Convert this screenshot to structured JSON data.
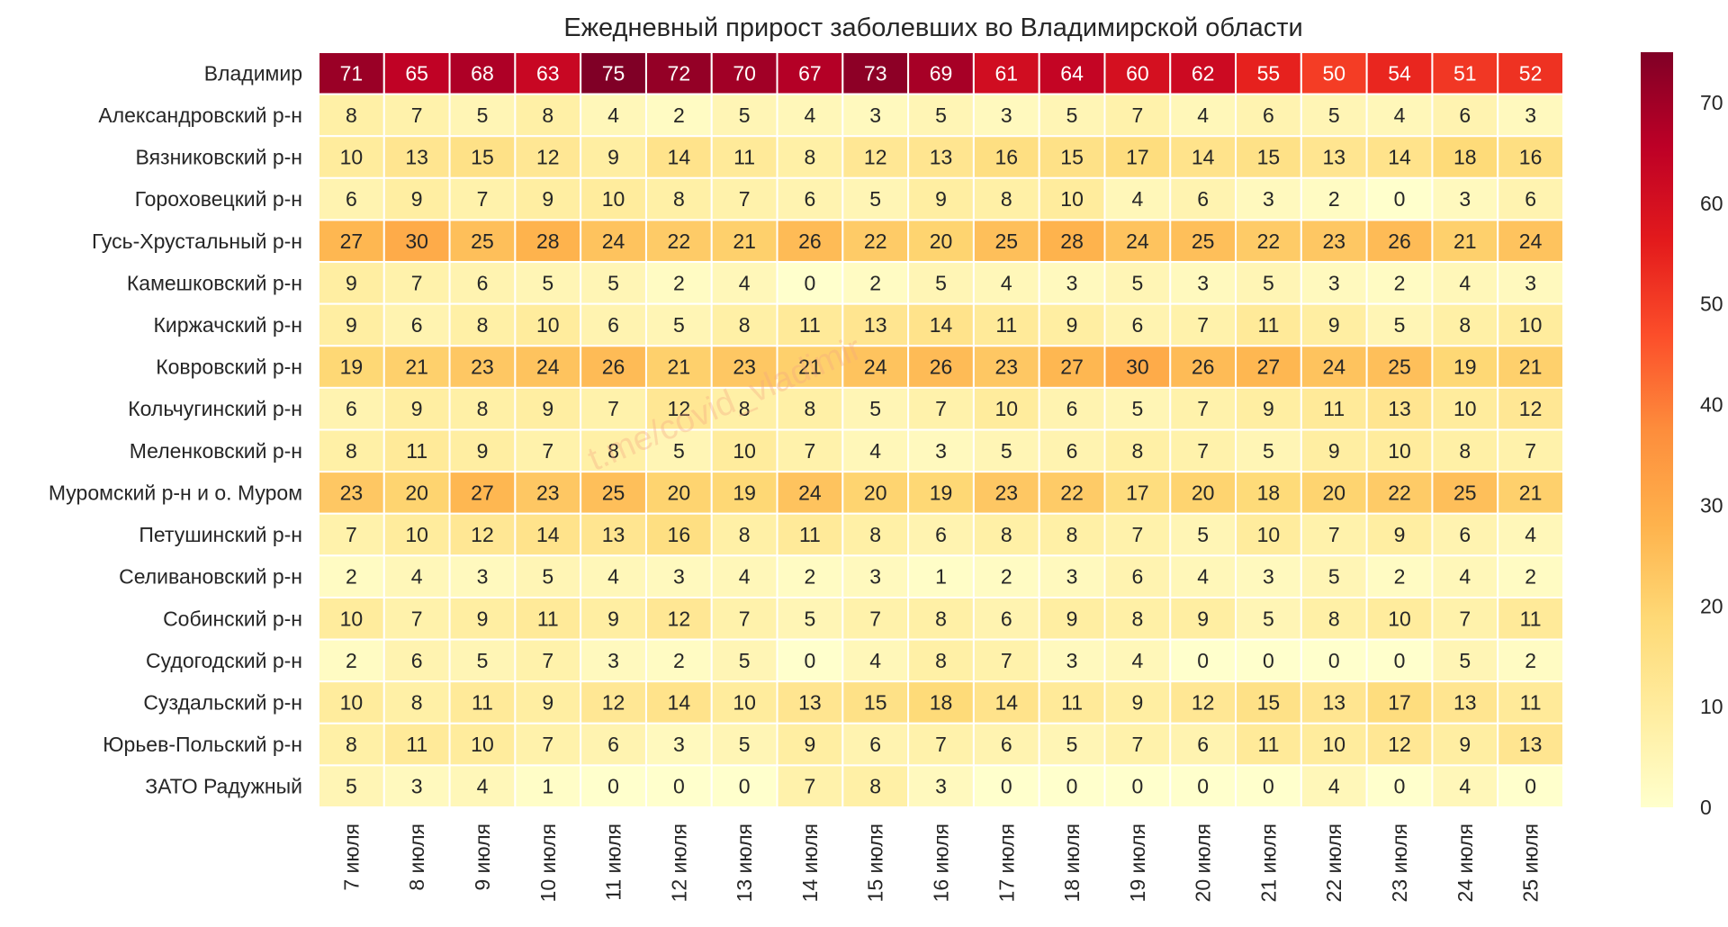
{
  "chart_data": {
    "type": "heatmap",
    "title": "Ежедневный прирост заболевших во Владимирской области",
    "watermark": "t.me/covid_vladimir",
    "rows": [
      "Владимир",
      "Александровский р-н",
      "Вязниковский р-н",
      "Гороховецкий р-н",
      "Гусь-Хрустальный р-н",
      "Камешковский р-н",
      "Киржачский р-н",
      "Ковровский р-н",
      "Кольчугинский р-н",
      "Меленковский р-н",
      "Муромский р-н и о. Муром",
      "Петушинский р-н",
      "Селивановский р-н",
      "Собинский р-н",
      "Судогодский р-н",
      "Суздальский р-н",
      "Юрьев-Польский р-н",
      "ЗАТО Радужный"
    ],
    "columns": [
      "7 июля",
      "8 июля",
      "9 июля",
      "10 июля",
      "11 июля",
      "12 июля",
      "13 июля",
      "14 июля",
      "15 июля",
      "16 июля",
      "17 июля",
      "18 июля",
      "19 июля",
      "20 июля",
      "21 июля",
      "22 июля",
      "23 июля",
      "24 июля",
      "25 июля"
    ],
    "values": [
      [
        71,
        65,
        68,
        63,
        75,
        72,
        70,
        67,
        73,
        69,
        61,
        64,
        60,
        62,
        55,
        50,
        54,
        51,
        52
      ],
      [
        8,
        7,
        5,
        8,
        4,
        2,
        5,
        4,
        3,
        5,
        3,
        5,
        7,
        4,
        6,
        5,
        4,
        6,
        3
      ],
      [
        10,
        13,
        15,
        12,
        9,
        14,
        11,
        8,
        12,
        13,
        16,
        15,
        17,
        14,
        15,
        13,
        14,
        18,
        16
      ],
      [
        6,
        9,
        7,
        9,
        10,
        8,
        7,
        6,
        5,
        9,
        8,
        10,
        4,
        6,
        3,
        2,
        0,
        3,
        6
      ],
      [
        27,
        30,
        25,
        28,
        24,
        22,
        21,
        26,
        22,
        20,
        25,
        28,
        24,
        25,
        22,
        23,
        26,
        21,
        24
      ],
      [
        9,
        7,
        6,
        5,
        5,
        2,
        4,
        0,
        2,
        5,
        4,
        3,
        5,
        3,
        5,
        3,
        2,
        4,
        3
      ],
      [
        9,
        6,
        8,
        10,
        6,
        5,
        8,
        11,
        13,
        14,
        11,
        9,
        6,
        7,
        11,
        9,
        5,
        8,
        10
      ],
      [
        19,
        21,
        23,
        24,
        26,
        21,
        23,
        21,
        24,
        26,
        23,
        27,
        30,
        26,
        27,
        24,
        25,
        19,
        21
      ],
      [
        6,
        9,
        8,
        9,
        7,
        12,
        8,
        8,
        5,
        7,
        10,
        6,
        5,
        7,
        9,
        11,
        13,
        10,
        12
      ],
      [
        8,
        11,
        9,
        7,
        8,
        5,
        10,
        7,
        4,
        3,
        5,
        6,
        8,
        7,
        5,
        9,
        10,
        8,
        7
      ],
      [
        23,
        20,
        27,
        23,
        25,
        20,
        19,
        24,
        20,
        19,
        23,
        22,
        17,
        20,
        18,
        20,
        22,
        25,
        21
      ],
      [
        7,
        10,
        12,
        14,
        13,
        16,
        8,
        11,
        8,
        6,
        8,
        8,
        7,
        5,
        10,
        7,
        9,
        6,
        4
      ],
      [
        2,
        4,
        3,
        5,
        4,
        3,
        4,
        2,
        3,
        1,
        2,
        3,
        6,
        4,
        3,
        5,
        2,
        4,
        2
      ],
      [
        10,
        7,
        9,
        11,
        9,
        12,
        7,
        5,
        7,
        8,
        6,
        9,
        8,
        9,
        5,
        8,
        10,
        7,
        11
      ],
      [
        2,
        6,
        5,
        7,
        3,
        2,
        5,
        0,
        4,
        8,
        7,
        3,
        4,
        0,
        0,
        0,
        0,
        5,
        2
      ],
      [
        10,
        8,
        11,
        9,
        12,
        14,
        10,
        13,
        15,
        18,
        14,
        11,
        9,
        12,
        15,
        13,
        17,
        13,
        11
      ],
      [
        8,
        11,
        10,
        7,
        6,
        3,
        5,
        9,
        6,
        7,
        6,
        5,
        7,
        6,
        11,
        10,
        12,
        9,
        13
      ],
      [
        5,
        3,
        4,
        1,
        0,
        0,
        0,
        7,
        8,
        3,
        0,
        0,
        0,
        0,
        0,
        4,
        0,
        4,
        0
      ]
    ],
    "colorbar": {
      "min": 0,
      "max": 75,
      "ticks": [
        0,
        10,
        20,
        30,
        40,
        50,
        60,
        70
      ],
      "colormap": "YlOrRd",
      "colors": [
        "#ffffcc",
        "#ffeda0",
        "#fed976",
        "#feb24c",
        "#fd8d3c",
        "#fc4e2a",
        "#e31a1c",
        "#bd0026",
        "#800026"
      ]
    },
    "cell_line_color": "#ffffff"
  }
}
